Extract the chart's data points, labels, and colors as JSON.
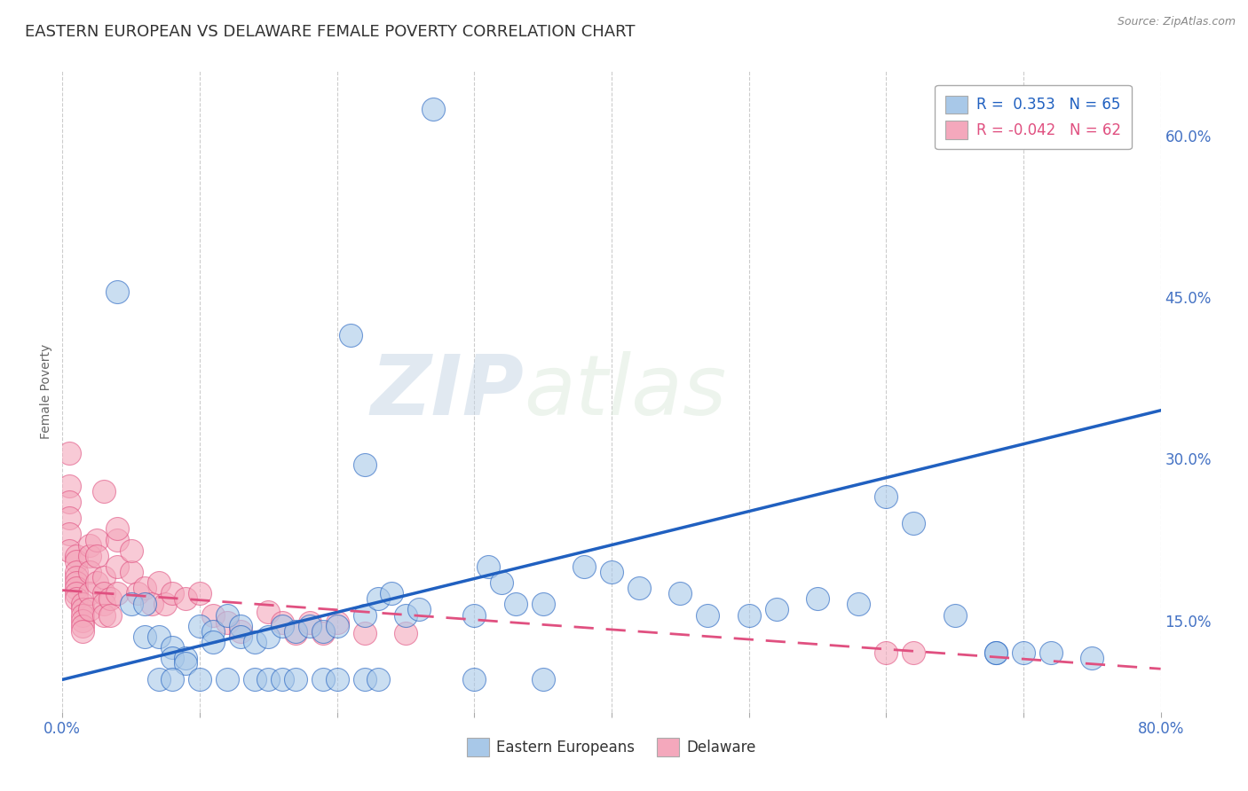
{
  "title": "EASTERN EUROPEAN VS DELAWARE FEMALE POVERTY CORRELATION CHART",
  "source_text": "Source: ZipAtlas.com",
  "ylabel": "Female Poverty",
  "xlim": [
    0.0,
    0.8
  ],
  "ylim": [
    0.065,
    0.66
  ],
  "xticks": [
    0.0,
    0.1,
    0.2,
    0.3,
    0.4,
    0.5,
    0.6,
    0.7,
    0.8
  ],
  "xticklabels": [
    "0.0%",
    "",
    "",
    "",
    "",
    "",
    "",
    "",
    "80.0%"
  ],
  "yticks_right": [
    0.15,
    0.3,
    0.45,
    0.6
  ],
  "ytick_right_labels": [
    "15.0%",
    "30.0%",
    "45.0%",
    "60.0%"
  ],
  "color_blue": "#a8c8e8",
  "color_pink": "#f4a8bc",
  "color_blue_line": "#2060c0",
  "color_pink_line": "#e05080",
  "watermark_zip": "ZIP",
  "watermark_atlas": "atlas",
  "grid_color": "#cccccc",
  "background_color": "#ffffff",
  "title_fontsize": 13,
  "axis_label_fontsize": 10,
  "blue_line_x": [
    0.0,
    0.8
  ],
  "blue_line_y": [
    0.095,
    0.345
  ],
  "pink_line_x": [
    0.0,
    0.8
  ],
  "pink_line_y": [
    0.178,
    0.105
  ],
  "blue_scatter_x": [
    0.27,
    0.04,
    0.21,
    0.22,
    0.05,
    0.06,
    0.06,
    0.07,
    0.08,
    0.08,
    0.09,
    0.09,
    0.1,
    0.11,
    0.11,
    0.12,
    0.13,
    0.13,
    0.14,
    0.15,
    0.16,
    0.17,
    0.18,
    0.19,
    0.2,
    0.22,
    0.23,
    0.24,
    0.25,
    0.26,
    0.3,
    0.31,
    0.32,
    0.33,
    0.35,
    0.38,
    0.4,
    0.42,
    0.45,
    0.47,
    0.5,
    0.52,
    0.55,
    0.58,
    0.6,
    0.62,
    0.65,
    0.68,
    0.7,
    0.72,
    0.75,
    0.07,
    0.08,
    0.1,
    0.12,
    0.14,
    0.15,
    0.16,
    0.17,
    0.19,
    0.2,
    0.22,
    0.23,
    0.3,
    0.35,
    0.68
  ],
  "blue_scatter_y": [
    0.625,
    0.455,
    0.415,
    0.295,
    0.165,
    0.165,
    0.135,
    0.135,
    0.125,
    0.115,
    0.115,
    0.11,
    0.145,
    0.14,
    0.13,
    0.155,
    0.145,
    0.135,
    0.13,
    0.135,
    0.145,
    0.14,
    0.145,
    0.14,
    0.145,
    0.155,
    0.17,
    0.175,
    0.155,
    0.16,
    0.155,
    0.2,
    0.185,
    0.165,
    0.165,
    0.2,
    0.195,
    0.18,
    0.175,
    0.155,
    0.155,
    0.16,
    0.17,
    0.165,
    0.265,
    0.24,
    0.155,
    0.12,
    0.12,
    0.12,
    0.115,
    0.095,
    0.095,
    0.095,
    0.095,
    0.095,
    0.095,
    0.095,
    0.095,
    0.095,
    0.095,
    0.095,
    0.095,
    0.095,
    0.095,
    0.12
  ],
  "pink_scatter_x": [
    0.005,
    0.005,
    0.005,
    0.005,
    0.005,
    0.005,
    0.01,
    0.01,
    0.01,
    0.01,
    0.01,
    0.01,
    0.01,
    0.01,
    0.015,
    0.015,
    0.015,
    0.015,
    0.015,
    0.015,
    0.02,
    0.02,
    0.02,
    0.02,
    0.02,
    0.025,
    0.025,
    0.025,
    0.03,
    0.03,
    0.03,
    0.03,
    0.035,
    0.035,
    0.04,
    0.04,
    0.04,
    0.05,
    0.055,
    0.06,
    0.065,
    0.07,
    0.075,
    0.08,
    0.09,
    0.1,
    0.11,
    0.12,
    0.13,
    0.15,
    0.16,
    0.17,
    0.18,
    0.19,
    0.2,
    0.22,
    0.25,
    0.03,
    0.04,
    0.05,
    0.6,
    0.62
  ],
  "pink_scatter_y": [
    0.305,
    0.275,
    0.26,
    0.245,
    0.23,
    0.215,
    0.21,
    0.205,
    0.195,
    0.19,
    0.185,
    0.18,
    0.175,
    0.17,
    0.165,
    0.16,
    0.155,
    0.15,
    0.145,
    0.14,
    0.22,
    0.21,
    0.195,
    0.175,
    0.16,
    0.225,
    0.21,
    0.185,
    0.19,
    0.175,
    0.165,
    0.155,
    0.17,
    0.155,
    0.225,
    0.2,
    0.175,
    0.195,
    0.175,
    0.18,
    0.165,
    0.185,
    0.165,
    0.175,
    0.17,
    0.175,
    0.155,
    0.148,
    0.14,
    0.158,
    0.148,
    0.138,
    0.148,
    0.138,
    0.148,
    0.138,
    0.138,
    0.27,
    0.235,
    0.215,
    0.12,
    0.12
  ]
}
